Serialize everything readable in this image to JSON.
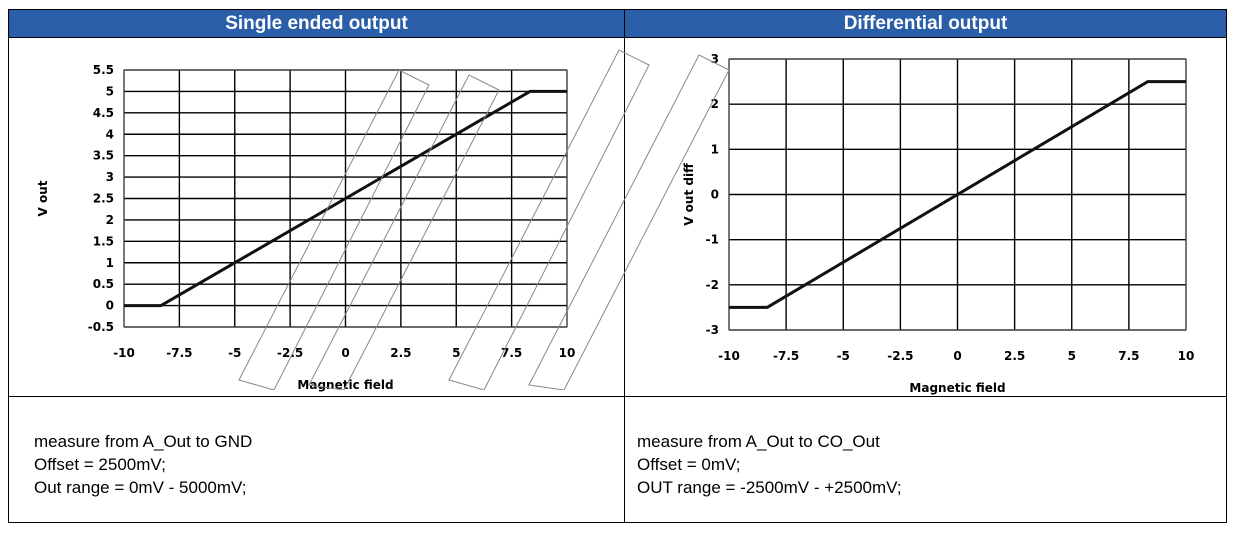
{
  "panels": [
    {
      "header": "Single ended output",
      "notes": [
        "measure from A_Out to GND",
        "Offset = 2500mV;",
        "Out range = 0mV - 5000mV;"
      ]
    },
    {
      "header": "Differential output",
      "notes": [
        "measure from A_Out to CO_Out",
        "Offset = 0mV;",
        "OUT range = -2500mV - +2500mV;"
      ]
    }
  ],
  "chart_data": [
    {
      "type": "line",
      "xlabel": "Magnetic field",
      "ylabel": "V out",
      "xlim": [
        -10,
        10
      ],
      "ylim": [
        -0.5,
        5.5
      ],
      "xticks": [
        "-10",
        "-7.5",
        "-5",
        "-2.5",
        "0",
        "2.5",
        "5",
        "7.5",
        "10"
      ],
      "yticks": [
        "-0.5",
        "0",
        "0.5",
        "1",
        "1.5",
        "2",
        "2.5",
        "3",
        "3.5",
        "4",
        "4.5",
        "5",
        "5.5"
      ],
      "series": [
        {
          "x": [
            -10,
            -8.33,
            8.33,
            10
          ],
          "y": [
            0,
            0,
            5,
            5
          ]
        }
      ],
      "grid": true,
      "colors": {
        "line": "#111111",
        "grid": "#000000"
      }
    },
    {
      "type": "line",
      "xlabel": "Magnetic field",
      "ylabel": "V out diff",
      "xlim": [
        -10,
        10
      ],
      "ylim": [
        -3,
        3
      ],
      "xticks": [
        "-10",
        "-7.5",
        "-5",
        "-2.5",
        "0",
        "2.5",
        "5",
        "7.5",
        "10"
      ],
      "yticks": [
        "-3",
        "-2",
        "-1",
        "0",
        "1",
        "2",
        "3"
      ],
      "series": [
        {
          "x": [
            -10,
            -8.33,
            8.33,
            10
          ],
          "y": [
            -2.5,
            -2.5,
            2.5,
            2.5
          ]
        }
      ],
      "grid": true,
      "colors": {
        "line": "#111111",
        "grid": "#000000"
      }
    }
  ],
  "theme": {
    "header_bg": "#2a5ea8",
    "header_fg": "#ffffff"
  }
}
